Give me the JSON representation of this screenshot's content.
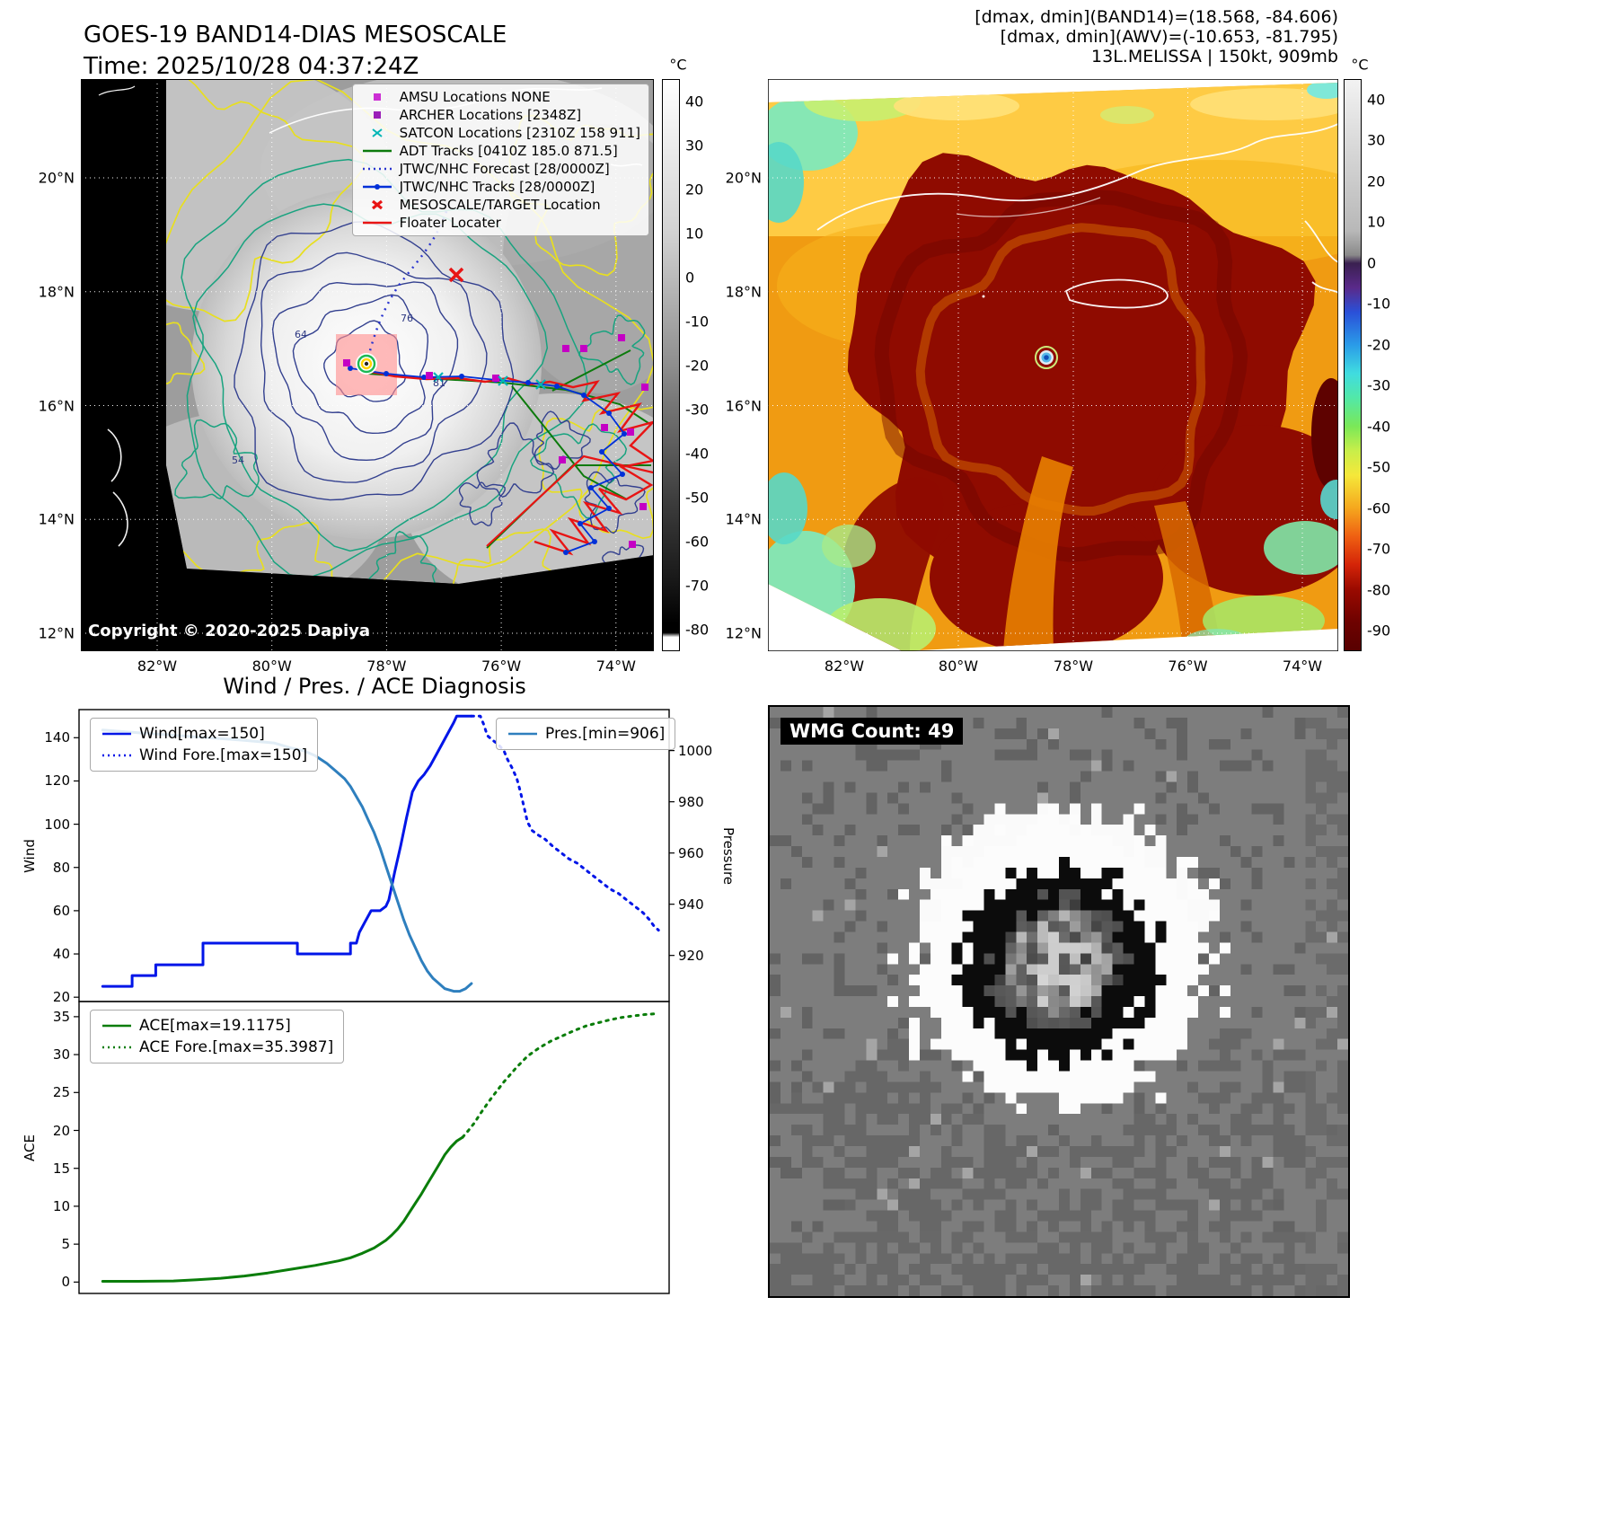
{
  "band14_panel": {
    "title": "GOES-19 BAND14-DIAS MESOSCALE",
    "subtitle": "Time: 2025/10/28 04:37:24Z",
    "copyright": "Copyright © 2020-2025 Dapiya",
    "x_ticks": [
      "82°W",
      "80°W",
      "78°W",
      "76°W",
      "74°W"
    ],
    "y_ticks": [
      "20°N",
      "18°N",
      "16°N",
      "14°N",
      "12°N"
    ],
    "contour_labels": [
      "64",
      "76",
      "81",
      "54"
    ],
    "colorbar": {
      "unit": "°C",
      "vmax": 45,
      "vmin": -85,
      "ticks": [
        40,
        30,
        20,
        10,
        0,
        -10,
        -20,
        -30,
        -40,
        -50,
        -60,
        -70,
        -80
      ],
      "stops": [
        {
          "v": 45,
          "c": "#ffffff"
        },
        {
          "v": 10,
          "c": "#d2d2d2"
        },
        {
          "v": -20,
          "c": "#8e8e8e"
        },
        {
          "v": -50,
          "c": "#3f3f3f"
        },
        {
          "v": -70,
          "c": "#161616"
        },
        {
          "v": -79,
          "c": "#000000"
        },
        {
          "v": -81,
          "c": "#000000"
        },
        {
          "v": -82,
          "c": "#ffffff"
        },
        {
          "v": -85,
          "c": "#ffffff"
        }
      ]
    },
    "legend": [
      {
        "label": "AMSU Locations NONE",
        "style": "square",
        "color": "#cc2fd4"
      },
      {
        "label": "ARCHER Locations [2348Z]",
        "style": "square",
        "color": "#9b1fb8"
      },
      {
        "label": "SATCON Locations [2310Z 158 911]",
        "style": "x",
        "color": "#00b5b5"
      },
      {
        "label": "ADT Tracks [0410Z 185.0 871.5]",
        "style": "line",
        "color": "#0c7a0c"
      },
      {
        "label": "JTWC/NHC Forecast [28/0000Z]",
        "style": "dotted",
        "color": "#2a35d0"
      },
      {
        "label": "JTWC/NHC Tracks [28/0000Z]",
        "style": "line-marker",
        "color": "#0030d8"
      },
      {
        "label": "MESOSCALE/TARGET Location",
        "style": "x-bold",
        "color": "#e81414"
      },
      {
        "label": "Floater Locater",
        "style": "line",
        "color": "#e81414"
      }
    ]
  },
  "awv_panel": {
    "header_lines": [
      "[dmax, dmin](BAND14)=(18.568, -84.606)",
      "[dmax, dmin](AWV)=(-10.653, -81.795)",
      "13L.MELISSA | 150kt, 909mb"
    ],
    "x_ticks": [
      "82°W",
      "80°W",
      "78°W",
      "76°W",
      "74°W"
    ],
    "y_ticks": [
      "20°N",
      "18°N",
      "16°N",
      "14°N",
      "12°N"
    ],
    "colorbar": {
      "unit": "°C",
      "vmax": 45,
      "vmin": -95,
      "ticks": [
        40,
        30,
        20,
        10,
        0,
        -10,
        -20,
        -30,
        -40,
        -50,
        -60,
        -70,
        -80,
        -90
      ],
      "stops": [
        {
          "v": 45,
          "c": "#f2f2f2"
        },
        {
          "v": 8,
          "c": "#b8b8b8"
        },
        {
          "v": 2,
          "c": "#8a8a8a"
        },
        {
          "v": 0,
          "c": "#3a2050"
        },
        {
          "v": -6,
          "c": "#5a2a8a"
        },
        {
          "v": -12,
          "c": "#2a50d8"
        },
        {
          "v": -20,
          "c": "#2a9be8"
        },
        {
          "v": -27,
          "c": "#40dce0"
        },
        {
          "v": -33,
          "c": "#52e8a8"
        },
        {
          "v": -40,
          "c": "#7ae858"
        },
        {
          "v": -46,
          "c": "#c8ee4a"
        },
        {
          "v": -52,
          "c": "#f5e83a"
        },
        {
          "v": -60,
          "c": "#f5a81e"
        },
        {
          "v": -67,
          "c": "#ef6012"
        },
        {
          "v": -74,
          "c": "#d42408"
        },
        {
          "v": -80,
          "c": "#9a0a00"
        },
        {
          "v": -88,
          "c": "#6e0200"
        },
        {
          "v": -95,
          "c": "#580000"
        }
      ]
    }
  },
  "diagnosis": {
    "title": "Wind / Pres. / ACE Diagnosis",
    "legend_wind": [
      {
        "label": "Wind[max=150]",
        "style": "line",
        "color": "#0015e8"
      },
      {
        "label": "Wind Fore.[max=150]",
        "style": "dotted",
        "color": "#0015e8"
      }
    ],
    "legend_pres": [
      {
        "label": "Pres.[min=906]",
        "style": "line",
        "color": "#2e7fbe"
      }
    ],
    "legend_ace": [
      {
        "label": "ACE[max=19.1175]",
        "style": "line",
        "color": "#0a7d0a"
      },
      {
        "label": "ACE Fore.[max=35.3987]",
        "style": "dotted",
        "color": "#0a7d0a"
      }
    ]
  },
  "wmg_panel": {
    "label": "WMG Count: 49"
  },
  "chart_data": [
    {
      "type": "line",
      "title": "Wind / Pres. / ACE Diagnosis",
      "x_range": [
        0,
        100
      ],
      "grid": false,
      "left_axis": {
        "label": "Wind",
        "lim": [
          18,
          153
        ],
        "ticks": [
          20,
          40,
          60,
          80,
          100,
          120,
          140
        ]
      },
      "right_axis": {
        "label": "Pressure",
        "lim": [
          902,
          1016
        ],
        "ticks": [
          920,
          940,
          960,
          980,
          1000
        ]
      },
      "series": [
        {
          "name": "Wind[max=150]",
          "axis": "left",
          "style": "solid",
          "color": "#0015e8",
          "points": [
            [
              4,
              25
            ],
            [
              9,
              25
            ],
            [
              9,
              30
            ],
            [
              13,
              30
            ],
            [
              13,
              35
            ],
            [
              17,
              35
            ],
            [
              21,
              35
            ],
            [
              21,
              45
            ],
            [
              27,
              45
            ],
            [
              33,
              45
            ],
            [
              37,
              45
            ],
            [
              37,
              40
            ],
            [
              46,
              40
            ],
            [
              46,
              45
            ],
            [
              47,
              45
            ],
            [
              47.5,
              50
            ],
            [
              48.5,
              55
            ],
            [
              49.5,
              60
            ],
            [
              51,
              60
            ],
            [
              52,
              62
            ],
            [
              52.5,
              65
            ],
            [
              53.5,
              78
            ],
            [
              54.5,
              90
            ],
            [
              55.5,
              103
            ],
            [
              56.5,
              115
            ],
            [
              57.5,
              120
            ],
            [
              58.5,
              123
            ],
            [
              59.5,
              127
            ],
            [
              60.5,
              132
            ],
            [
              61.5,
              137
            ],
            [
              62.5,
              142
            ],
            [
              63.5,
              147
            ],
            [
              64,
              150
            ],
            [
              66.5,
              150
            ]
          ]
        },
        {
          "name": "Wind Fore.[max=150]",
          "axis": "left",
          "style": "dotted",
          "color": "#0015e8",
          "points": [
            [
              66.5,
              150
            ],
            [
              68,
              150
            ],
            [
              68.6,
              146
            ],
            [
              69.2,
              141
            ],
            [
              70,
              139
            ],
            [
              71,
              137
            ],
            [
              72,
              134
            ],
            [
              72.6,
              130
            ],
            [
              73.4,
              126
            ],
            [
              74.2,
              121
            ],
            [
              74.8,
              115
            ],
            [
              75.4,
              108
            ],
            [
              76,
              101
            ],
            [
              76.8,
              97
            ],
            [
              77.8,
              95
            ],
            [
              79,
              93
            ],
            [
              80.2,
              90
            ],
            [
              81.6,
              87
            ],
            [
              83,
              84
            ],
            [
              84.4,
              82
            ],
            [
              85.8,
              79
            ],
            [
              87.2,
              76
            ],
            [
              88.6,
              73
            ],
            [
              90,
              70
            ],
            [
              91.4,
              68
            ],
            [
              92.8,
              65
            ],
            [
              94.2,
              62
            ],
            [
              95.6,
              59
            ],
            [
              96.6,
              56
            ],
            [
              97.4,
              53
            ],
            [
              98.2,
              51
            ]
          ]
        },
        {
          "name": "Pres.[min=906]",
          "axis": "right",
          "style": "solid",
          "color": "#2e7fbe",
          "points": [
            [
              4,
              1008
            ],
            [
              10,
              1007
            ],
            [
              16,
              1006
            ],
            [
              22,
              1005
            ],
            [
              28,
              1004
            ],
            [
              33,
              1003
            ],
            [
              36,
              1001
            ],
            [
              38,
              1000
            ],
            [
              40,
              998
            ],
            [
              42,
              995
            ],
            [
              43.5,
              992
            ],
            [
              45,
              989
            ],
            [
              46,
              986
            ],
            [
              47,
              982
            ],
            [
              48,
              978
            ],
            [
              49,
              973
            ],
            [
              50,
              968
            ],
            [
              51,
              962
            ],
            [
              52,
              955
            ],
            [
              53,
              948
            ],
            [
              54,
              941
            ],
            [
              55,
              934
            ],
            [
              56,
              928
            ],
            [
              57,
              923
            ],
            [
              58,
              918
            ],
            [
              59,
              914
            ],
            [
              60,
              911
            ],
            [
              61,
              909
            ],
            [
              62,
              907
            ],
            [
              63.5,
              906
            ],
            [
              64.5,
              906
            ],
            [
              65.5,
              907
            ],
            [
              66.5,
              909
            ]
          ]
        }
      ]
    },
    {
      "type": "line",
      "title": "",
      "x_range": [
        0,
        100
      ],
      "grid": false,
      "left_axis": {
        "label": "ACE",
        "lim": [
          -1.5,
          37
        ],
        "ticks": [
          0,
          5,
          10,
          15,
          20,
          25,
          30,
          35
        ]
      },
      "series": [
        {
          "name": "ACE[max=19.1175]",
          "axis": "left",
          "style": "solid",
          "color": "#0a7d0a",
          "points": [
            [
              4,
              0.1
            ],
            [
              10,
              0.1
            ],
            [
              16,
              0.15
            ],
            [
              20,
              0.3
            ],
            [
              24,
              0.5
            ],
            [
              28,
              0.8
            ],
            [
              32,
              1.2
            ],
            [
              36,
              1.7
            ],
            [
              40,
              2.2
            ],
            [
              44,
              2.8
            ],
            [
              46,
              3.2
            ],
            [
              48,
              3.8
            ],
            [
              50,
              4.5
            ],
            [
              52,
              5.5
            ],
            [
              53,
              6.2
            ],
            [
              54,
              7
            ],
            [
              55,
              8
            ],
            [
              56,
              9.2
            ],
            [
              57,
              10.4
            ],
            [
              58,
              11.6
            ],
            [
              59,
              12.9
            ],
            [
              60,
              14.2
            ],
            [
              61,
              15.5
            ],
            [
              62,
              16.8
            ],
            [
              63,
              17.8
            ],
            [
              64,
              18.6
            ],
            [
              65,
              19.1
            ]
          ]
        },
        {
          "name": "ACE Fore.[max=35.3987]",
          "axis": "left",
          "style": "dotted",
          "color": "#0a7d0a",
          "points": [
            [
              65,
              19.1
            ],
            [
              66,
              20
            ],
            [
              67,
              21
            ],
            [
              68,
              22.2
            ],
            [
              69,
              23.3
            ],
            [
              70,
              24.4
            ],
            [
              71,
              25.4
            ],
            [
              72,
              26.4
            ],
            [
              73,
              27.3
            ],
            [
              74,
              28.2
            ],
            [
              75,
              29
            ],
            [
              76,
              29.8
            ],
            [
              78,
              30.9
            ],
            [
              80,
              31.8
            ],
            [
              82,
              32.5
            ],
            [
              84,
              33.2
            ],
            [
              86,
              33.8
            ],
            [
              88,
              34.2
            ],
            [
              90,
              34.6
            ],
            [
              92,
              34.9
            ],
            [
              94,
              35.1
            ],
            [
              96,
              35.3
            ],
            [
              98,
              35.4
            ]
          ]
        }
      ]
    }
  ]
}
